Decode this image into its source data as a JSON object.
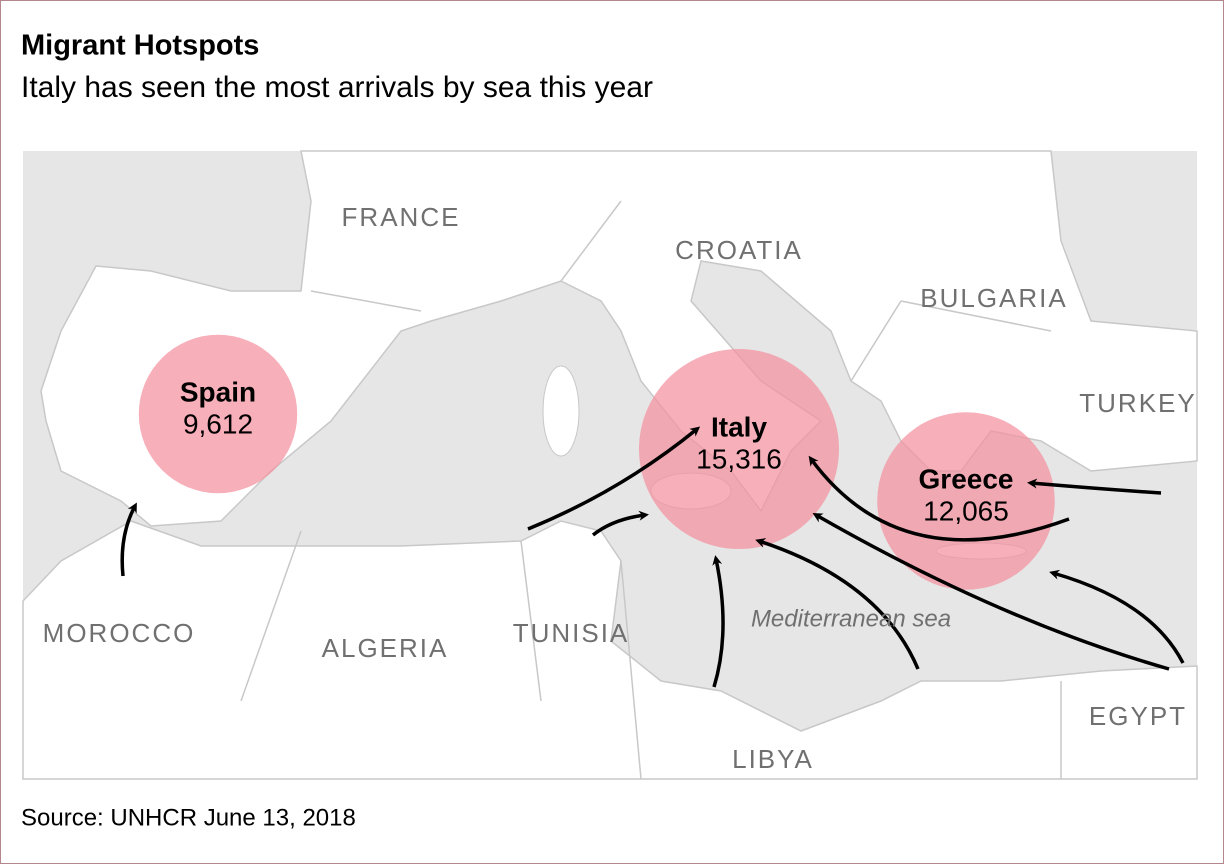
{
  "title": "Migrant Hotspots",
  "subtitle": "Italy has seen the most arrivals by sea this year",
  "source": "Source: UNHCR June 13, 2018",
  "country_labels": [
    "FRANCE",
    "CROATIA",
    "BULGARIA",
    "TURKEY",
    "MOROCCO",
    "ALGERIA",
    "TUNISIA",
    "LIBYA",
    "EGYPT"
  ],
  "sea_label": "Mediterranean sea",
  "hotspots": [
    {
      "name": "Spain",
      "value": 9612,
      "value_label": "9,612"
    },
    {
      "name": "Italy",
      "value": 15316,
      "value_label": "15,316"
    },
    {
      "name": "Greece",
      "value": 12065,
      "value_label": "12,065"
    }
  ]
}
